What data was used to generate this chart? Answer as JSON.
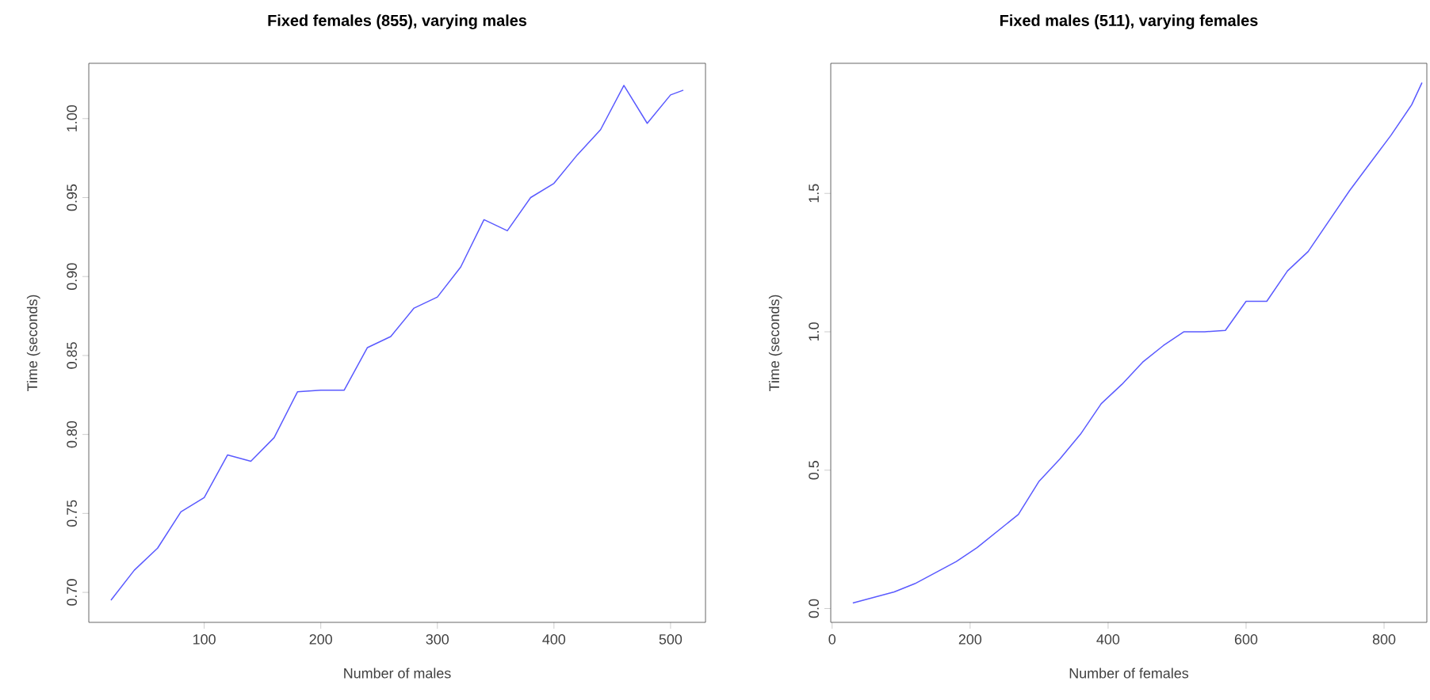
{
  "chart_data": [
    {
      "type": "line",
      "title": "Fixed females (855), varying males",
      "xlabel": "Number of males",
      "ylabel": "Time (seconds)",
      "x": [
        20,
        40,
        60,
        80,
        100,
        120,
        140,
        160,
        180,
        200,
        220,
        240,
        260,
        280,
        300,
        320,
        340,
        360,
        380,
        400,
        420,
        440,
        460,
        480,
        500,
        511
      ],
      "series": [
        {
          "color": "#5a5aff",
          "values": [
            0.695,
            0.714,
            0.728,
            0.751,
            0.76,
            0.787,
            0.783,
            0.798,
            0.827,
            0.828,
            0.828,
            0.855,
            0.862,
            0.88,
            0.887,
            0.906,
            0.936,
            0.929,
            0.95,
            0.959,
            0.977,
            0.993,
            1.021,
            0.997,
            1.015,
            1.018
          ]
        }
      ],
      "xlim": [
        1,
        530
      ],
      "ylim": [
        0.681,
        1.035
      ],
      "xticks": [
        100,
        200,
        300,
        400,
        500
      ],
      "yticks": [
        {
          "value": 0.7,
          "label": "0.70"
        },
        {
          "value": 0.75,
          "label": "0.75"
        },
        {
          "value": 0.8,
          "label": "0.80"
        },
        {
          "value": 0.85,
          "label": "0.85"
        },
        {
          "value": 0.9,
          "label": "0.90"
        },
        {
          "value": 0.95,
          "label": "0.95"
        },
        {
          "value": 1.0,
          "label": "1.00"
        }
      ],
      "grid": false
    },
    {
      "type": "line",
      "title": "Fixed males (511), varying females",
      "xlabel": "Number of females",
      "ylabel": "Time (seconds)",
      "x": [
        30,
        60,
        90,
        120,
        150,
        180,
        210,
        240,
        270,
        300,
        330,
        360,
        390,
        420,
        450,
        480,
        510,
        540,
        570,
        600,
        630,
        660,
        690,
        720,
        750,
        780,
        810,
        840,
        855
      ],
      "series": [
        {
          "color": "#5a5aff",
          "values": [
            0.02,
            0.04,
            0.06,
            0.09,
            0.13,
            0.17,
            0.22,
            0.28,
            0.34,
            0.46,
            0.54,
            0.63,
            0.74,
            0.81,
            0.89,
            0.95,
            1.0,
            1.0,
            1.005,
            1.11,
            1.11,
            1.22,
            1.29,
            1.4,
            1.51,
            1.61,
            1.71,
            1.82,
            1.9
          ]
        }
      ],
      "xlim": [
        -2,
        862
      ],
      "ylim": [
        -0.05,
        1.97
      ],
      "xticks": [
        0,
        200,
        400,
        600,
        800
      ],
      "yticks": [
        {
          "value": 0,
          "label": "0.0"
        },
        {
          "value": 0.5,
          "label": "0.5"
        },
        {
          "value": 1.0,
          "label": "1.0"
        },
        {
          "value": 1.5,
          "label": "1.5"
        }
      ],
      "grid": false
    }
  ]
}
